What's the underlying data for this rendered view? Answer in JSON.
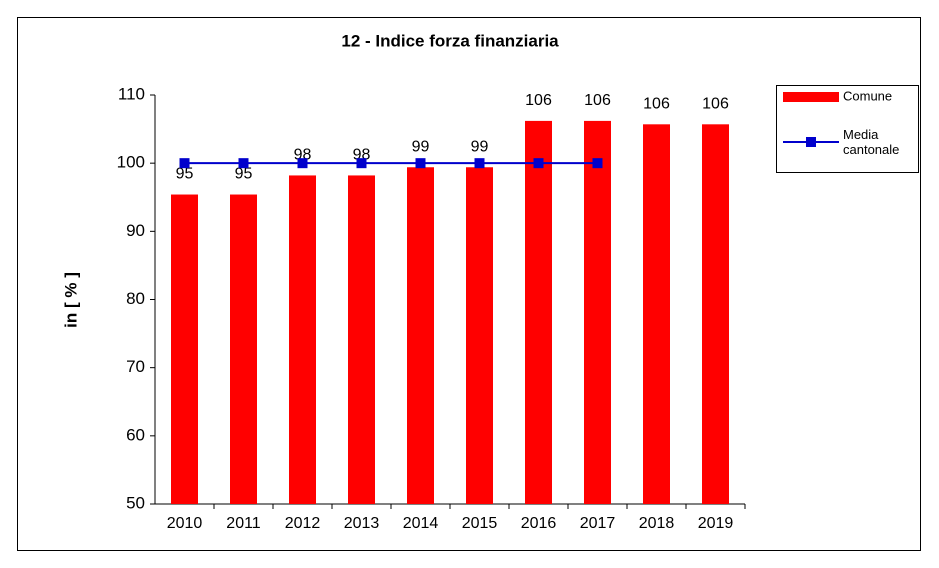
{
  "chart_data": {
    "type": "bar",
    "title": "12 - Indice forza finanziaria",
    "y_label": "in  [ % ]",
    "categories": [
      "2010",
      "2011",
      "2012",
      "2013",
      "2014",
      "2015",
      "2016",
      "2017",
      "2018",
      "2019"
    ],
    "series": [
      {
        "name": "Comune",
        "color": "#ff0000",
        "values": [
          95.4,
          95.4,
          98.2,
          98.2,
          99.4,
          99.4,
          106.2,
          106.2,
          105.7,
          105.7
        ],
        "value_labels": [
          "95",
          "95",
          "98",
          "98",
          "99",
          "99",
          "106",
          "106",
          "106",
          "106"
        ]
      },
      {
        "name": "Media cantonale",
        "color": "#0000cc",
        "type": "line",
        "values": [
          100,
          100,
          100,
          100,
          100,
          100,
          100,
          100,
          null,
          null
        ]
      }
    ],
    "ylim": [
      50,
      110
    ],
    "yticks": [
      50,
      60,
      70,
      80,
      90,
      100,
      110
    ]
  }
}
